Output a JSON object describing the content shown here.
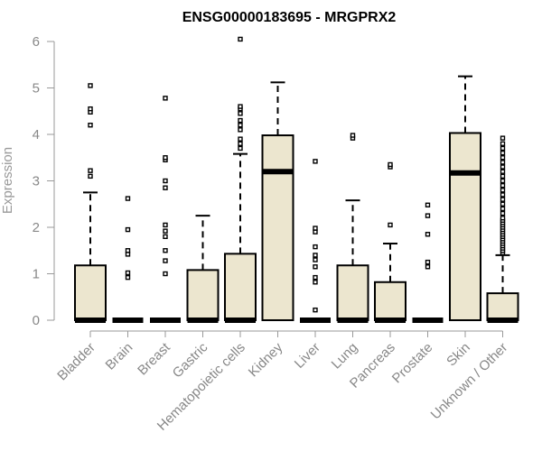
{
  "chart_data": {
    "type": "box",
    "title": "ENSG00000183695 - MRGPRX2",
    "xlabel": "",
    "ylabel": "Expression",
    "ylim": [
      0,
      6
    ],
    "yticks": [
      "0",
      "1",
      "2",
      "3",
      "4",
      "5",
      "6"
    ],
    "categories": [
      "Bladder",
      "Brain",
      "Breast",
      "Gastric",
      "Hematopoietic cells",
      "Kidney",
      "Liver",
      "Lung",
      "Pancreas",
      "Prostate",
      "Skin",
      "Unknown / Other"
    ],
    "boxes": [
      {
        "q1": 0,
        "median": 0,
        "q3": 1.18,
        "whisker_low": 0,
        "whisker_high": 2.75,
        "outliers": [
          3.1,
          3.22,
          4.2,
          4.48,
          4.55,
          5.05
        ]
      },
      {
        "q1": 0,
        "median": 0,
        "q3": 0,
        "whisker_low": 0,
        "whisker_high": 0,
        "outliers": [
          0.92,
          1.02,
          1.42,
          1.5,
          1.95,
          2.62
        ]
      },
      {
        "q1": 0,
        "median": 0,
        "q3": 0,
        "whisker_low": 0,
        "whisker_high": 0,
        "outliers": [
          1.0,
          1.28,
          1.5,
          1.8,
          1.92,
          2.05,
          2.85,
          3.0,
          3.45,
          3.5,
          4.78
        ]
      },
      {
        "q1": 0,
        "median": 0,
        "q3": 1.08,
        "whisker_low": 0,
        "whisker_high": 2.25,
        "outliers": []
      },
      {
        "q1": 0,
        "median": 0,
        "q3": 1.43,
        "whisker_low": 0,
        "whisker_high": 3.58,
        "outliers": [
          3.7,
          3.8,
          3.9,
          4.1,
          4.2,
          4.3,
          4.45,
          4.55,
          4.6,
          6.05
        ]
      },
      {
        "q1": 0,
        "median": 3.2,
        "q3": 3.98,
        "whisker_low": 0,
        "whisker_high": 5.12,
        "outliers": []
      },
      {
        "q1": 0,
        "median": 0,
        "q3": 0,
        "whisker_low": 0,
        "whisker_high": 0,
        "outliers": [
          0.22,
          0.82,
          0.92,
          1.15,
          1.3,
          1.4,
          1.58,
          1.9,
          1.98,
          3.42
        ]
      },
      {
        "q1": 0,
        "median": 0,
        "q3": 1.18,
        "whisker_low": 0,
        "whisker_high": 2.58,
        "outliers": [
          3.92,
          3.98
        ]
      },
      {
        "q1": 0,
        "median": 0,
        "q3": 0.82,
        "whisker_low": 0,
        "whisker_high": 1.65,
        "outliers": [
          2.05,
          3.3,
          3.35
        ]
      },
      {
        "q1": 0,
        "median": 0,
        "q3": 0,
        "whisker_low": 0,
        "whisker_high": 0,
        "outliers": [
          1.15,
          1.25,
          1.85,
          2.25,
          2.48
        ]
      },
      {
        "q1": 0,
        "median": 3.17,
        "q3": 4.03,
        "whisker_low": 0,
        "whisker_high": 5.25,
        "outliers": []
      },
      {
        "q1": 0,
        "median": 0,
        "q3": 0.58,
        "whisker_low": 0,
        "whisker_high": 1.4,
        "outliers": [
          1.45,
          1.5,
          1.55,
          1.6,
          1.65,
          1.7,
          1.75,
          1.8,
          1.85,
          1.9,
          1.95,
          2.0,
          2.05,
          2.1,
          2.15,
          2.2,
          2.3,
          2.4,
          2.5,
          2.6,
          2.7,
          2.8,
          2.9,
          3.0,
          3.1,
          3.2,
          3.3,
          3.4,
          3.5,
          3.6,
          3.7,
          3.8,
          3.92
        ]
      }
    ],
    "box_fill": "#ece6cf",
    "box_stroke": "#000000",
    "axis_color": "#999999",
    "grid": false,
    "legend": "none"
  }
}
